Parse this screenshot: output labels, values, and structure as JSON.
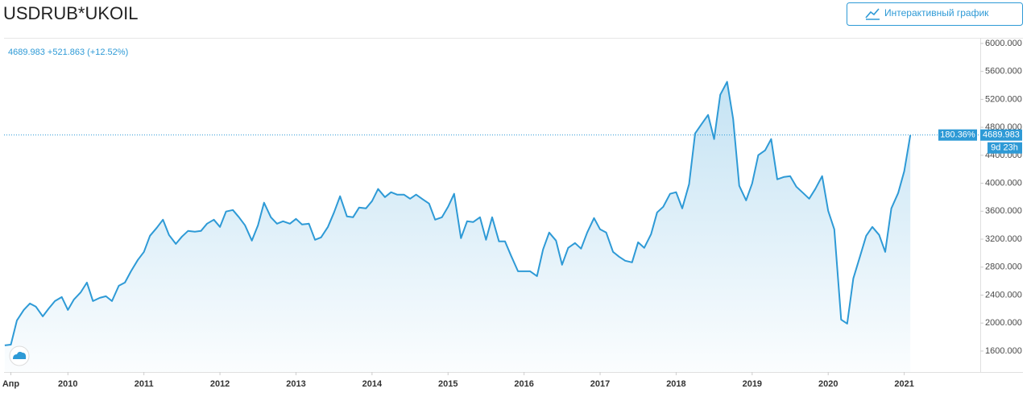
{
  "chart_data": {
    "type": "area",
    "title": "USDRUB*UKOIL",
    "button_label": "Интерактивный график",
    "header_value": "4689.983 +521.863 (+12.52%)",
    "change_label": "180.36%",
    "countdown_label": "9d 23h",
    "series": [
      {
        "name": "USDRUB*UKOIL",
        "color": "#2e9ad6",
        "x": [
          2009.17,
          2009.25,
          2009.33,
          2009.42,
          2009.5,
          2009.58,
          2009.67,
          2009.75,
          2009.83,
          2009.92,
          2010,
          2010.08,
          2010.17,
          2010.25,
          2010.33,
          2010.42,
          2010.5,
          2010.58,
          2010.67,
          2010.75,
          2010.83,
          2010.92,
          2011,
          2011.08,
          2011.17,
          2011.25,
          2011.33,
          2011.42,
          2011.5,
          2011.58,
          2011.67,
          2011.75,
          2011.83,
          2011.92,
          2012,
          2012.08,
          2012.17,
          2012.25,
          2012.33,
          2012.42,
          2012.5,
          2012.58,
          2012.67,
          2012.75,
          2012.83,
          2012.92,
          2013,
          2013.08,
          2013.17,
          2013.25,
          2013.33,
          2013.42,
          2013.5,
          2013.58,
          2013.67,
          2013.75,
          2013.83,
          2013.92,
          2014,
          2014.08,
          2014.17,
          2014.25,
          2014.33,
          2014.42,
          2014.5,
          2014.58,
          2014.67,
          2014.75,
          2014.83,
          2014.92,
          2015,
          2015.08,
          2015.17,
          2015.25,
          2015.33,
          2015.42,
          2015.5,
          2015.58,
          2015.67,
          2015.75,
          2015.83,
          2015.92,
          2016,
          2016.08,
          2016.17,
          2016.25,
          2016.33,
          2016.42,
          2016.5,
          2016.58,
          2016.67,
          2016.75,
          2016.83,
          2016.92,
          2017,
          2017.08,
          2017.17,
          2017.25,
          2017.33,
          2017.42,
          2017.5,
          2017.58,
          2017.67,
          2017.75,
          2017.83,
          2017.92,
          2018,
          2018.08,
          2018.17,
          2018.25,
          2018.33,
          2018.42,
          2018.5,
          2018.58,
          2018.67,
          2018.75,
          2018.83,
          2018.92,
          2019,
          2019.08,
          2019.17,
          2019.25,
          2019.33,
          2019.42,
          2019.5,
          2019.58,
          2019.67,
          2019.75,
          2019.83,
          2019.92,
          2020,
          2020.08,
          2020.17,
          2020.25,
          2020.33,
          2020.42,
          2020.5,
          2020.58,
          2020.67,
          2020.75,
          2020.83,
          2020.92,
          2021,
          2021.08
        ],
        "values": [
          1681,
          1692,
          2038,
          2188,
          2280,
          2234,
          2096,
          2211,
          2315,
          2372,
          2188,
          2338,
          2442,
          2580,
          2315,
          2361,
          2384,
          2315,
          2534,
          2580,
          2741,
          2903,
          3018,
          3249,
          3364,
          3479,
          3260,
          3133,
          3237,
          3318,
          3306,
          3318,
          3422,
          3479,
          3376,
          3595,
          3618,
          3514,
          3399,
          3180,
          3399,
          3722,
          3514,
          3422,
          3456,
          3422,
          3491,
          3410,
          3422,
          3191,
          3226,
          3376,
          3583,
          3814,
          3526,
          3514,
          3652,
          3641,
          3745,
          3918,
          3802,
          3872,
          3837,
          3837,
          3779,
          3837,
          3768,
          3710,
          3479,
          3514,
          3664,
          3849,
          3214,
          3456,
          3445,
          3514,
          3191,
          3514,
          3168,
          3168,
          2961,
          2741,
          2741,
          2741,
          2672,
          3053,
          3295,
          3180,
          2834,
          3076,
          3145,
          3064,
          3295,
          3502,
          3341,
          3295,
          3018,
          2949,
          2892,
          2869,
          3156,
          3076,
          3272,
          3583,
          3664,
          3849,
          3872,
          3641,
          3987,
          4713,
          4840,
          4978,
          4632,
          5266,
          5451,
          4921,
          3964,
          3756,
          3998,
          4402,
          4471,
          4632,
          4056,
          4091,
          4102,
          3952,
          3860,
          3779,
          3918,
          4102,
          3606,
          3341,
          2050,
          1992,
          2638,
          2961,
          3249,
          3376,
          3260,
          3018,
          3641,
          3860,
          4171,
          4689.983
        ]
      }
    ],
    "xlim": [
      2009.16,
      2022.0
    ],
    "xticks": [
      {
        "value": 2009.25,
        "label": "Апр"
      },
      2010,
      2011,
      2012,
      2013,
      2014,
      2015,
      2016,
      2017,
      2018,
      2019,
      2020,
      2021
    ],
    "ylim": [
      1300,
      6080
    ],
    "yticks": [
      {
        "value": 1600,
        "label": "1600.000"
      },
      {
        "value": 2000,
        "label": "2000.000"
      },
      {
        "value": 2400,
        "label": "2400.000"
      },
      {
        "value": 2800,
        "label": "2800.000"
      },
      {
        "value": 3200,
        "label": "3200.000"
      },
      {
        "value": 3600,
        "label": "3600.000"
      },
      {
        "value": 4000,
        "label": "4000.000"
      },
      {
        "value": 4400,
        "label": "4400.000"
      },
      {
        "value": 4800,
        "label": "4800.000"
      },
      {
        "value": 5200,
        "label": "5200.000"
      },
      {
        "value": 5600,
        "label": "5600.000"
      },
      {
        "value": 6000,
        "label": "6000.000"
      }
    ],
    "grid": false
  }
}
